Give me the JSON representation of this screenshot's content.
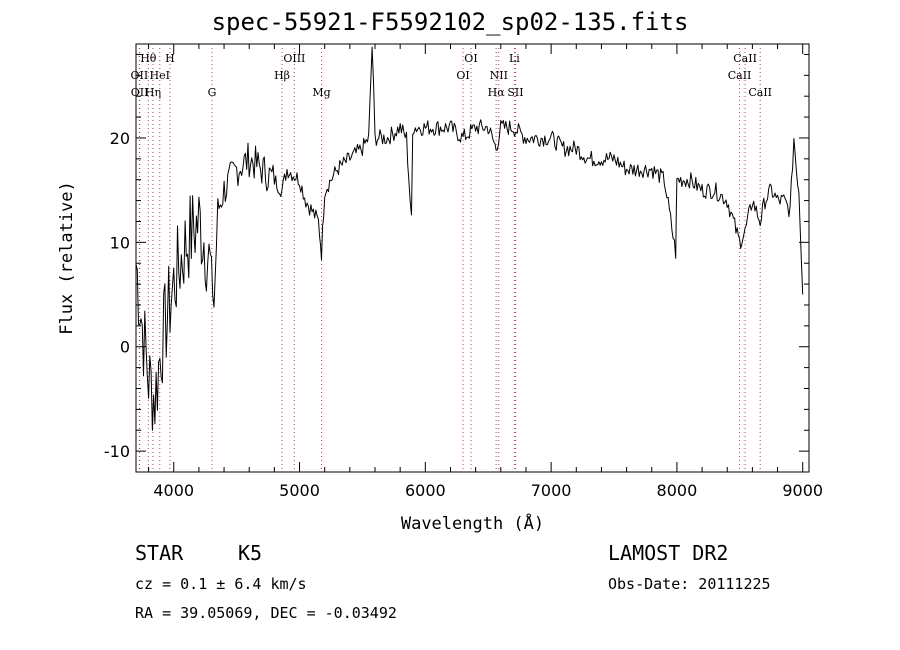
{
  "chart_data": {
    "type": "line",
    "title": "spec-55921-F5592102_sp02-135.fits",
    "xlabel": "Wavelength (Å)",
    "ylabel": "Flux (relative)",
    "xlim": [
      3700,
      9050
    ],
    "ylim": [
      -12,
      29
    ],
    "xticks": [
      4000,
      5000,
      6000,
      7000,
      8000,
      9000
    ],
    "yticks": [
      -10,
      0,
      10,
      20
    ],
    "grid": false,
    "series": [
      {
        "values_note": "",
        "x": [
          3700,
          3750,
          3800,
          3850,
          3900,
          3950,
          4000,
          4050,
          4100,
          4150,
          4200,
          4250,
          4300,
          4320,
          4350,
          4400,
          4450,
          4500,
          4600,
          4700,
          4800,
          4861,
          4900,
          5000,
          5050,
          5100,
          5150,
          5175,
          5200,
          5250,
          5300,
          5400,
          5500,
          5550,
          5577,
          5600,
          5700,
          5800,
          5850,
          5890,
          5900,
          6000,
          6100,
          6200,
          6300,
          6400,
          6500,
          6563,
          6600,
          6700,
          6800,
          6900,
          7000,
          7100,
          7200,
          7300,
          7400,
          7500,
          7600,
          7700,
          7800,
          7900,
          7990,
          8000,
          8100,
          8200,
          8300,
          8400,
          8450,
          8498,
          8542,
          8600,
          8662,
          8700,
          8750,
          8800,
          8850,
          8900,
          8930,
          8950,
          8970,
          9000
        ],
        "y": [
          8,
          2,
          -3,
          -5,
          0,
          3,
          6,
          8,
          10,
          11,
          12,
          10,
          7,
          4,
          13,
          15,
          16,
          17,
          18,
          17,
          16,
          15,
          17,
          16,
          14,
          13,
          12,
          9,
          15,
          16,
          17,
          18,
          19,
          20,
          29,
          20,
          20,
          21,
          20,
          12,
          21,
          21,
          21,
          21,
          20,
          21,
          21,
          19,
          21,
          21,
          20,
          20,
          20,
          19,
          19,
          18,
          18,
          18,
          17,
          17,
          17,
          16,
          9,
          16,
          16,
          15,
          15,
          14,
          12,
          10,
          11,
          14,
          12,
          14,
          15,
          14,
          14,
          13,
          20,
          17,
          15,
          5
        ]
      }
    ],
    "line_markers": [
      {
        "label": "Hθ",
        "x": 3798,
        "row": 0
      },
      {
        "label": "H",
        "x": 3970,
        "row": 0
      },
      {
        "label": "OII",
        "x": 3727,
        "row": 1
      },
      {
        "label": "HeI",
        "x": 3889,
        "row": 1
      },
      {
        "label": "OII",
        "x": 3729,
        "row": 2
      },
      {
        "label": "Hη",
        "x": 3835,
        "row": 2
      },
      {
        "label": "G",
        "x": 4304,
        "row": 2
      },
      {
        "label": "OIII",
        "x": 4959,
        "row": 0
      },
      {
        "label": "Hβ",
        "x": 4861,
        "row": 1
      },
      {
        "label": "Mg",
        "x": 5175,
        "row": 2
      },
      {
        "label": "OI",
        "x": 6363,
        "row": 0
      },
      {
        "label": "OI",
        "x": 6300,
        "row": 1
      },
      {
        "label": "Li",
        "x": 6708,
        "row": 0
      },
      {
        "label": "NII",
        "x": 6584,
        "row": 1
      },
      {
        "label": "Hα",
        "x": 6563,
        "row": 2
      },
      {
        "label": "SII",
        "x": 6717,
        "row": 2
      },
      {
        "label": "CaII",
        "x": 8542,
        "row": 0
      },
      {
        "label": "CaII",
        "x": 8498,
        "row": 1
      },
      {
        "label": "CaII",
        "x": 8662,
        "row": 2
      }
    ]
  },
  "info": {
    "class": "STAR",
    "subclass": "K5",
    "survey": "LAMOST DR2",
    "cz": "cz = 0.1 ± 6.4 km/s",
    "obs_date": "Obs-Date: 20111225",
    "coords": "RA =  39.05069, DEC =  -0.03492"
  }
}
